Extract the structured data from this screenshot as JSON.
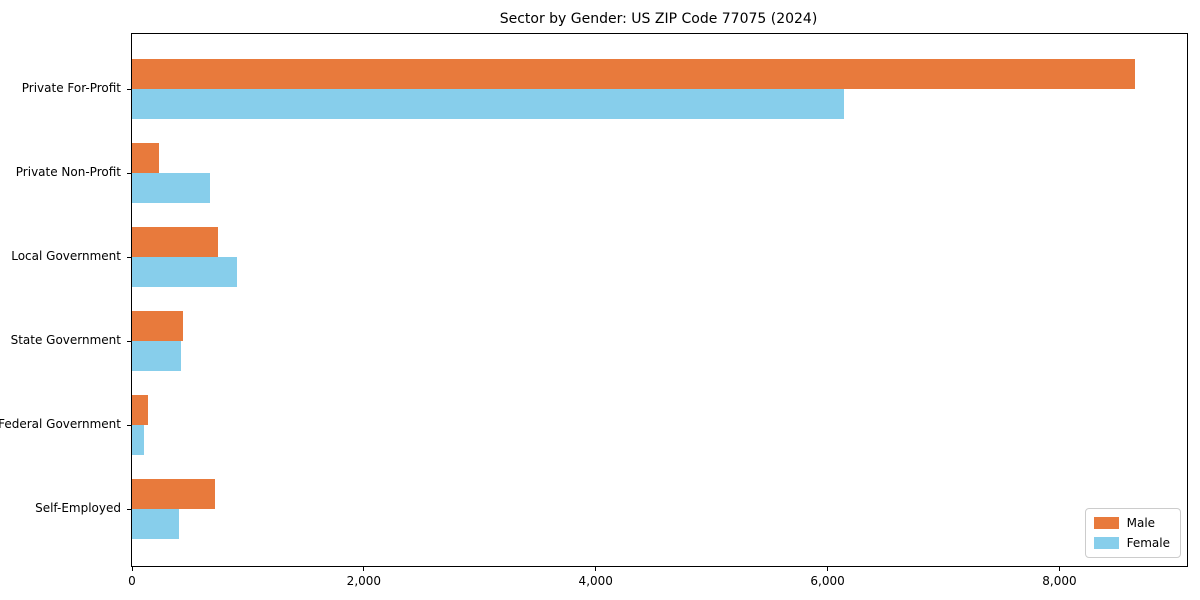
{
  "chart_data": {
    "type": "bar",
    "orientation": "horizontal",
    "title": "Sector by Gender: US ZIP Code 77075 (2024)",
    "categories": [
      "Private For-Profit",
      "Private Non-Profit",
      "Local Government",
      "State Government",
      "Federal Government",
      "Self-Employed"
    ],
    "series": [
      {
        "name": "Male",
        "color": "#E87A3C",
        "values": [
          8650,
          230,
          740,
          440,
          140,
          715
        ]
      },
      {
        "name": "Female",
        "color": "#87CEEB",
        "values": [
          6140,
          670,
          905,
          420,
          100,
          405
        ]
      }
    ],
    "xlabel": "",
    "ylabel": "",
    "xlim": [
      0,
      9100
    ],
    "x_ticks": [
      0,
      2000,
      4000,
      6000,
      8000
    ],
    "x_tick_labels": [
      "0",
      "2,000",
      "4,000",
      "6,000",
      "8,000"
    ],
    "legend_position": "lower right",
    "grid": false,
    "background_color": "#ffffff",
    "axis_color": "#000000"
  }
}
